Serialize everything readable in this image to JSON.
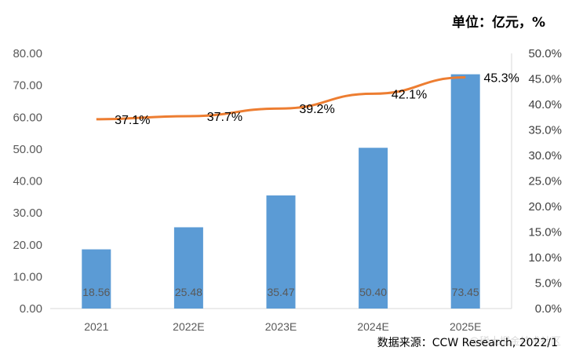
{
  "unit_label": "单位：亿元，%",
  "source": "数据来源：CCW Research, 2022/1",
  "watermark": "@稀土掘金技术社区",
  "colors": {
    "bar": "#5b9bd5",
    "line": "#ed7d31",
    "axis": "#d9d9d9",
    "text": "#595959"
  },
  "chart_data": {
    "type": "bar",
    "categories": [
      "2021",
      "2022E",
      "2023E",
      "2024E",
      "2025E"
    ],
    "series": [
      {
        "values": [
          18.56,
          25.48,
          35.47,
          50.4,
          73.45
        ],
        "axis": "left",
        "kind": "bar",
        "labels": [
          "18.56",
          "25.48",
          "35.47",
          "50.40",
          "73.45"
        ]
      },
      {
        "values": [
          37.1,
          37.7,
          39.2,
          42.1,
          45.3
        ],
        "axis": "right",
        "kind": "line",
        "labels": [
          "37.1%",
          "37.7%",
          "39.2%",
          "42.1%",
          "45.3%"
        ]
      }
    ],
    "ylim_left": [
      0,
      80
    ],
    "ylim_right": [
      0,
      50
    ],
    "yticks_left": [
      "0.00",
      "10.00",
      "20.00",
      "30.00",
      "40.00",
      "50.00",
      "60.00",
      "70.00",
      "80.00"
    ],
    "yticks_right": [
      "0.0%",
      "5.0%",
      "10.0%",
      "15.0%",
      "20.0%",
      "25.0%",
      "30.0%",
      "35.0%",
      "40.0%",
      "45.0%",
      "50.0%"
    ],
    "grid": false,
    "legend": "none"
  }
}
